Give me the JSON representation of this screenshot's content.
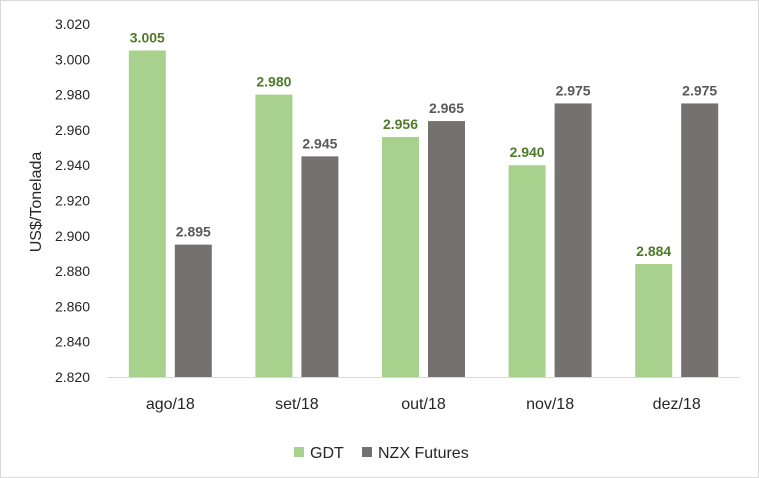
{
  "chart_data": {
    "type": "bar",
    "title": "",
    "xlabel": "",
    "ylabel": "US$/Tonelada",
    "ylim": [
      2820,
      3020
    ],
    "yticks": [
      2820,
      2840,
      2860,
      2880,
      2900,
      2920,
      2940,
      2960,
      2980,
      3000,
      3020
    ],
    "ytick_labels": [
      "2.820",
      "2.840",
      "2.860",
      "2.880",
      "2.900",
      "2.920",
      "2.940",
      "2.960",
      "2.980",
      "3.000",
      "3.020"
    ],
    "categories": [
      "ago/18",
      "set/18",
      "out/18",
      "nov/18",
      "dez/18"
    ],
    "series": [
      {
        "name": "GDT",
        "color": "#a9d18e",
        "label_color": "#4e7a2a",
        "values": [
          3005,
          2980,
          2956,
          2940,
          2884
        ],
        "labels": [
          "3.005",
          "2.980",
          "2.956",
          "2.940",
          "2.884"
        ]
      },
      {
        "name": "NZX Futures",
        "color": "#767171",
        "label_color": "#595959",
        "values": [
          2895,
          2945,
          2965,
          2975,
          2975
        ],
        "labels": [
          "2.895",
          "2.945",
          "2.965",
          "2.975",
          "2.975"
        ]
      }
    ],
    "grid": false,
    "legend": "bottom-center"
  }
}
